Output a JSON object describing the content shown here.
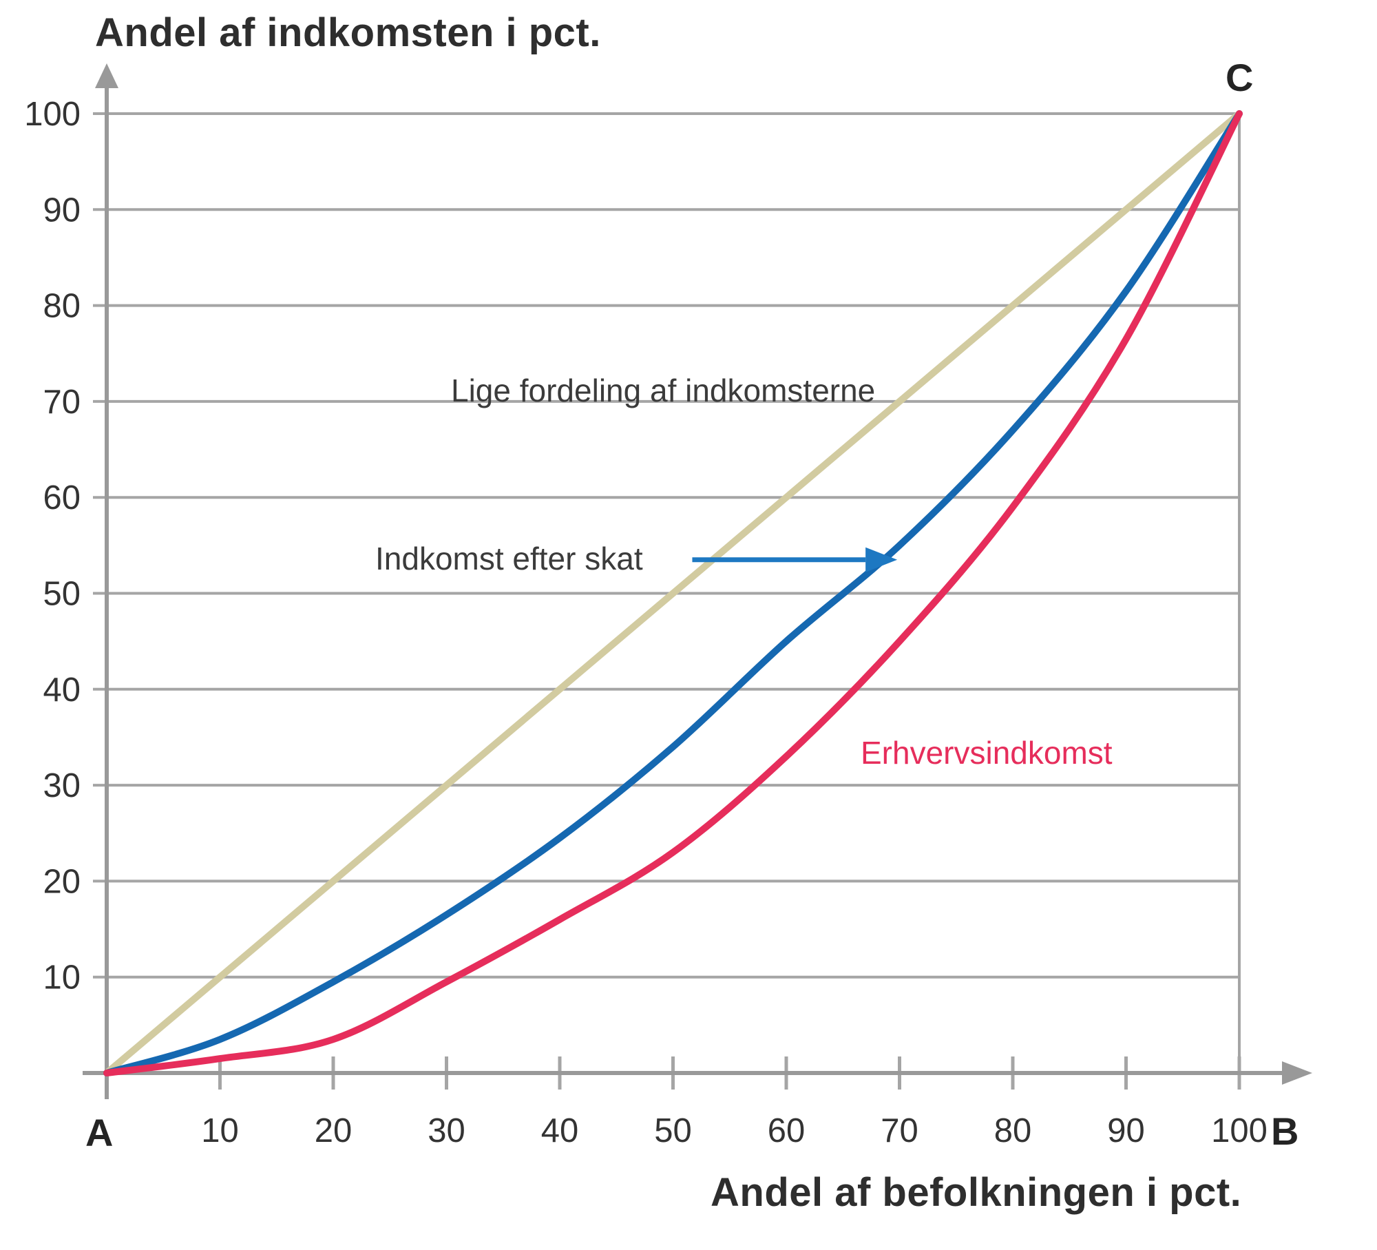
{
  "chart_data": {
    "type": "line",
    "title": "Andel af indkomsten i pct.",
    "xlabel": "Andel af befolkningen i pct.",
    "xlim": [
      0,
      100
    ],
    "ylim": [
      0,
      100
    ],
    "x_ticks": [
      10,
      20,
      30,
      40,
      50,
      60,
      70,
      80,
      90,
      100
    ],
    "y_ticks": [
      10,
      20,
      30,
      40,
      50,
      60,
      70,
      80,
      90,
      100
    ],
    "grid": "horizontal gridlines on, right border on",
    "legend_position": "inline annotations",
    "corner_labels": {
      "origin": "A",
      "x_axis_end": "B",
      "top_right": "C"
    },
    "series": [
      {
        "name": "Lige fordeling af indkomsterne",
        "color": "#d2cba0",
        "shape": "straight",
        "points": [
          [
            0,
            0
          ],
          [
            100,
            100
          ]
        ]
      },
      {
        "name": "Indkomst efter skat",
        "color": "#1568b1",
        "shape": "smooth",
        "points": [
          [
            0,
            0
          ],
          [
            10,
            3.5
          ],
          [
            20,
            9.5
          ],
          [
            30,
            16.5
          ],
          [
            40,
            24.5
          ],
          [
            50,
            34
          ],
          [
            60,
            45
          ],
          [
            70,
            55
          ],
          [
            80,
            67
          ],
          [
            90,
            81.5
          ],
          [
            100,
            100
          ]
        ]
      },
      {
        "name": "Erhvervsindkomst",
        "color": "#e62d5b",
        "shape": "smooth",
        "points": [
          [
            0,
            0
          ],
          [
            10,
            1.5
          ],
          [
            20,
            3.5
          ],
          [
            30,
            9.5
          ],
          [
            40,
            16
          ],
          [
            50,
            23
          ],
          [
            60,
            33
          ],
          [
            70,
            45
          ],
          [
            80,
            59
          ],
          [
            90,
            76.5
          ],
          [
            100,
            100
          ]
        ]
      }
    ],
    "annotations": [
      {
        "text": "Lige fordeling af indkomsterne",
        "color": "#3b3b3b",
        "at_data": [
          51,
          71
        ]
      },
      {
        "text": "Indkomst efter skat",
        "color": "#3b3b3b",
        "at_data": [
          50,
          54
        ],
        "arrow": {
          "color": "#1d78c2",
          "from_data": [
            51.7,
            53.5
          ],
          "to_data": [
            67,
            53.5
          ]
        }
      },
      {
        "text": "Erhvervsindkomst",
        "color": "#e62d5b",
        "at_data": [
          79,
          33
        ]
      }
    ],
    "axis_colors": {
      "axis": "#999999",
      "grid": "#a5a5a5",
      "tick_label": "#333333"
    }
  },
  "labels": {
    "title": "Andel af indkomsten i pct.",
    "xlabel": "Andel af befolkningen i pct.",
    "corner_a": "A",
    "corner_b": "B",
    "corner_c": "C",
    "anno_lige": "Lige fordeling af indkomsterne",
    "anno_indkomst": "Indkomst efter skat",
    "anno_erhverv": "Erhvervsindkomst"
  }
}
